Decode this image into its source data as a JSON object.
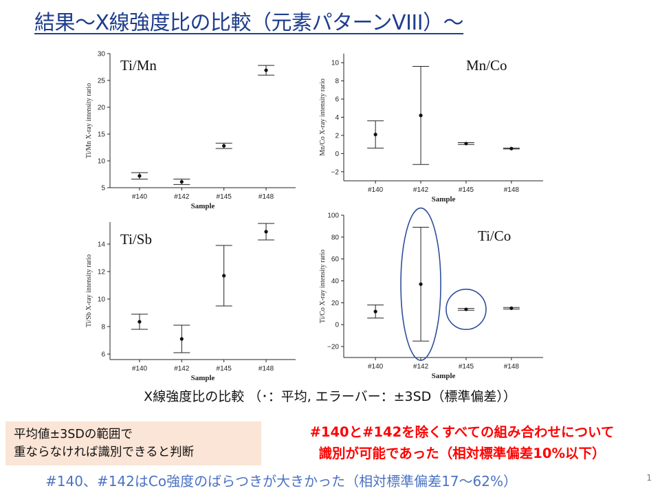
{
  "slide": {
    "title": "結果～X線強度比の比較（元素パターンVIII）～",
    "caption": "X線強度比の比較 （･：平均, エラーバー：±3SD（標準偏差））",
    "note_box": [
      "平均値±3SDの範囲で",
      "重ならなければ識別できると判断"
    ],
    "red_note": [
      "#140と#142を除くすべての組み合わせについて",
      "識別が可能であった（相対標準偏差10%以下）"
    ],
    "footer": "#140、#142はCo強度のばらつきが大きかった（相対標準偏差17～62%）",
    "page_number": "1",
    "colors": {
      "title": "#1f3e8c",
      "red_note": "#ff0000",
      "footer": "#4a72c4",
      "note_box_bg": "#fbe5d6",
      "ellipse": "#2e4d9c"
    }
  },
  "chart_data": [
    {
      "type": "scatter",
      "panel_label": "Ti/Mn",
      "xlabel": "Sample",
      "ylabel": "Ti/Mn X-ray intensity rario",
      "categories": [
        "#140",
        "#142",
        "#145",
        "#148"
      ],
      "values": [
        7.2,
        6.1,
        12.8,
        26.9
      ],
      "error_low": [
        6.6,
        5.6,
        12.3,
        26.0
      ],
      "error_high": [
        7.8,
        6.6,
        13.3,
        27.8
      ],
      "ylim": [
        5,
        30
      ],
      "yticks": [
        5,
        10,
        15,
        20,
        25,
        30
      ]
    },
    {
      "type": "scatter",
      "panel_label": "Mn/Co",
      "xlabel": "Sample",
      "ylabel": "Mn/Co X-ray intensity rario",
      "categories": [
        "#140",
        "#142",
        "#145",
        "#148"
      ],
      "values": [
        2.1,
        4.2,
        1.1,
        0.55
      ],
      "error_low": [
        0.6,
        -1.2,
        1.0,
        0.5
      ],
      "error_high": [
        3.6,
        9.6,
        1.2,
        0.6
      ],
      "ylim": [
        -3,
        11
      ],
      "yticks": [
        -2,
        0,
        2,
        4,
        6,
        8,
        10
      ]
    },
    {
      "type": "scatter",
      "panel_label": "Ti/Sb",
      "xlabel": "Sample",
      "ylabel": "Ti/Sb X-ray intensity rario",
      "categories": [
        "#140",
        "#142",
        "#145",
        "#148"
      ],
      "values": [
        8.35,
        7.1,
        11.7,
        14.9
      ],
      "error_low": [
        7.8,
        6.1,
        9.5,
        14.3
      ],
      "error_high": [
        8.9,
        8.1,
        13.9,
        15.5
      ],
      "ylim": [
        5.6,
        15.6
      ],
      "yticks": [
        6,
        8,
        10,
        12,
        14
      ]
    },
    {
      "type": "scatter",
      "panel_label": "Ti/Co",
      "xlabel": "Sample",
      "ylabel": "Ti/Co X-ray intensity rario",
      "categories": [
        "#140",
        "#142",
        "#145",
        "#148"
      ],
      "values": [
        12,
        37,
        14,
        15
      ],
      "error_low": [
        6,
        -15,
        13.2,
        14.3
      ],
      "error_high": [
        18,
        89,
        14.8,
        15.7
      ],
      "ylim": [
        -30,
        100
      ],
      "yticks": [
        -20,
        0,
        20,
        40,
        60,
        80,
        100
      ],
      "highlight_ellipses": [
        "#142",
        "#145"
      ]
    }
  ]
}
